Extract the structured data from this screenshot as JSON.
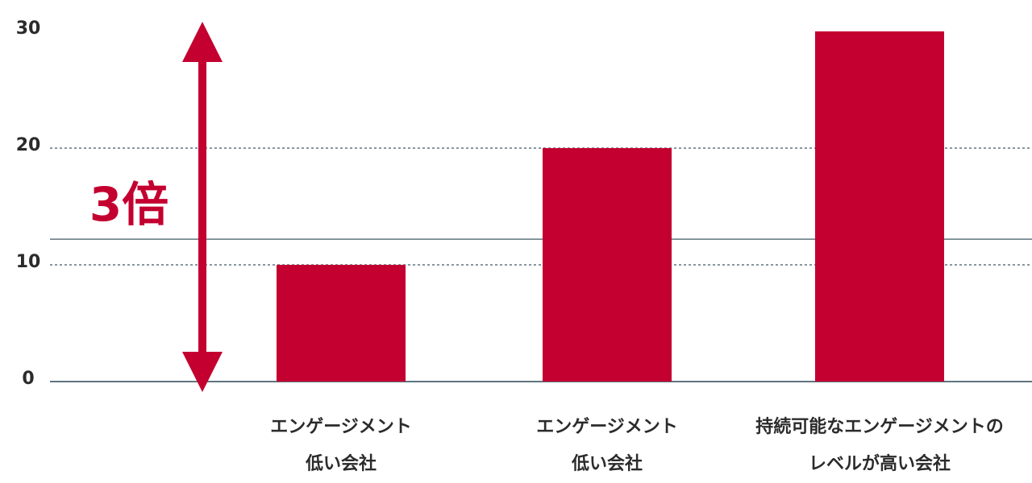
{
  "chart_data": {
    "type": "bar",
    "categories": [
      [
        "エンゲージメント",
        "低い会社"
      ],
      [
        "エンゲージメント",
        "低い会社"
      ],
      [
        "持続可能なエンゲージメントの",
        "レベルが高い会社"
      ]
    ],
    "values": [
      10,
      20,
      30
    ],
    "color": "#c3002f",
    "ylim": [
      0,
      30
    ],
    "yticks": [
      0,
      10,
      20,
      30
    ],
    "grid": true,
    "reference_line": 12.2,
    "annotation": "3倍"
  }
}
